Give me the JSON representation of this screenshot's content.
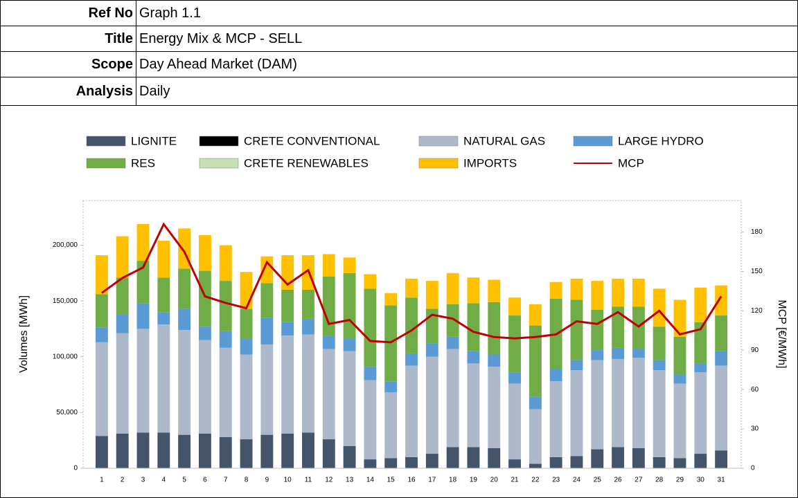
{
  "header": {
    "rows": [
      {
        "label": "Ref No",
        "value": "Graph 1.1"
      },
      {
        "label": "Title",
        "value": "Energy Mix & MCP - SELL"
      },
      {
        "label": "Scope",
        "value": "Day Ahead Market (DAM)"
      },
      {
        "label": "Analysis",
        "value": "Daily"
      }
    ]
  },
  "chart_data": {
    "type": "bar",
    "stacked": true,
    "ylabel": "Volumes [MWh]",
    "y2label": "MCP [€/MWh]",
    "categories": [
      "1",
      "2",
      "3",
      "4",
      "5",
      "6",
      "7",
      "8",
      "9",
      "10",
      "11",
      "12",
      "13",
      "14",
      "15",
      "16",
      "17",
      "18",
      "19",
      "20",
      "21",
      "22",
      "23",
      "24",
      "25",
      "26",
      "27",
      "28",
      "29",
      "30",
      "31"
    ],
    "ylim": [
      0,
      240000
    ],
    "yticks": [
      0,
      {
        "value": 50000,
        "label": "50,000"
      },
      {
        "value": 100000,
        "label": "100,000"
      },
      {
        "value": 150000,
        "label": "150,000"
      },
      {
        "value": 200000,
        "label": "200,000"
      }
    ],
    "y2lim": [
      0,
      204
    ],
    "y2ticks": [
      0,
      30,
      60,
      90,
      120,
      150,
      180
    ],
    "legend": "top",
    "series": [
      {
        "name": "LIGNITE",
        "color": "#44546a",
        "values": [
          29000,
          31000,
          32000,
          32000,
          30000,
          31000,
          28000,
          26000,
          30000,
          31000,
          32000,
          26000,
          20000,
          8000,
          9000,
          10000,
          13000,
          19000,
          19000,
          18000,
          8000,
          4000,
          10000,
          11000,
          17000,
          19000,
          18000,
          10000,
          9000,
          13000,
          16000
        ]
      },
      {
        "name": "CRETE CONVENTIONAL",
        "color": "#000000",
        "values": [
          0,
          0,
          0,
          0,
          0,
          0,
          0,
          0,
          0,
          0,
          0,
          0,
          0,
          0,
          0,
          0,
          0,
          0,
          0,
          0,
          0,
          0,
          0,
          0,
          0,
          0,
          0,
          0,
          0,
          0,
          0
        ]
      },
      {
        "name": "NATURAL GAS",
        "color": "#adb9ca",
        "values": [
          84000,
          90000,
          93000,
          97000,
          94000,
          84000,
          80000,
          76000,
          81000,
          88000,
          88000,
          81000,
          85000,
          71000,
          59000,
          82000,
          87000,
          88000,
          75000,
          73000,
          68000,
          49000,
          68000,
          77000,
          80000,
          79000,
          81000,
          78000,
          67000,
          73000,
          76000
        ]
      },
      {
        "name": "LARGE HYDRO",
        "color": "#5b9bd5",
        "values": [
          13000,
          17000,
          23000,
          11000,
          19000,
          12000,
          15000,
          14000,
          24000,
          12000,
          14000,
          12000,
          11000,
          12000,
          10000,
          11000,
          12000,
          11000,
          11000,
          11000,
          10000,
          11000,
          11000,
          9000,
          9000,
          10000,
          8000,
          9000,
          8000,
          8000,
          13000
        ]
      },
      {
        "name": "RES",
        "color": "#70ad47",
        "values": [
          30000,
          33000,
          38000,
          31000,
          36000,
          50000,
          45000,
          27000,
          31000,
          29000,
          26000,
          53000,
          59000,
          70000,
          68000,
          50000,
          31000,
          29000,
          43000,
          47000,
          51000,
          64000,
          63000,
          54000,
          36000,
          37000,
          38000,
          30000,
          34000,
          37000,
          32000
        ]
      },
      {
        "name": "CRETE RENEWABLES",
        "color": "#c5e0b4",
        "values": [
          0,
          0,
          0,
          0,
          0,
          0,
          0,
          0,
          0,
          0,
          0,
          0,
          0,
          0,
          0,
          0,
          0,
          0,
          0,
          0,
          0,
          0,
          0,
          0,
          0,
          0,
          0,
          0,
          0,
          0,
          0
        ]
      },
      {
        "name": "IMPORTS",
        "color": "#ffc000",
        "values": [
          35000,
          37000,
          33000,
          33000,
          36000,
          32000,
          32000,
          33000,
          24000,
          31000,
          31000,
          20000,
          14000,
          13000,
          11000,
          17000,
          25000,
          28000,
          23000,
          20000,
          16000,
          19000,
          15000,
          19000,
          26000,
          25000,
          25000,
          34000,
          33000,
          31000,
          27000
        ]
      },
      {
        "name": "MCP",
        "color": "#c00000",
        "type": "line",
        "axis": "y2",
        "values": [
          133.6,
          145,
          153,
          186,
          165,
          131,
          126,
          122,
          157,
          140,
          151,
          110,
          113,
          97,
          96,
          105,
          117,
          114,
          104,
          100,
          99,
          100,
          102,
          112,
          110,
          119,
          108,
          120,
          102,
          106,
          131
        ]
      }
    ]
  }
}
